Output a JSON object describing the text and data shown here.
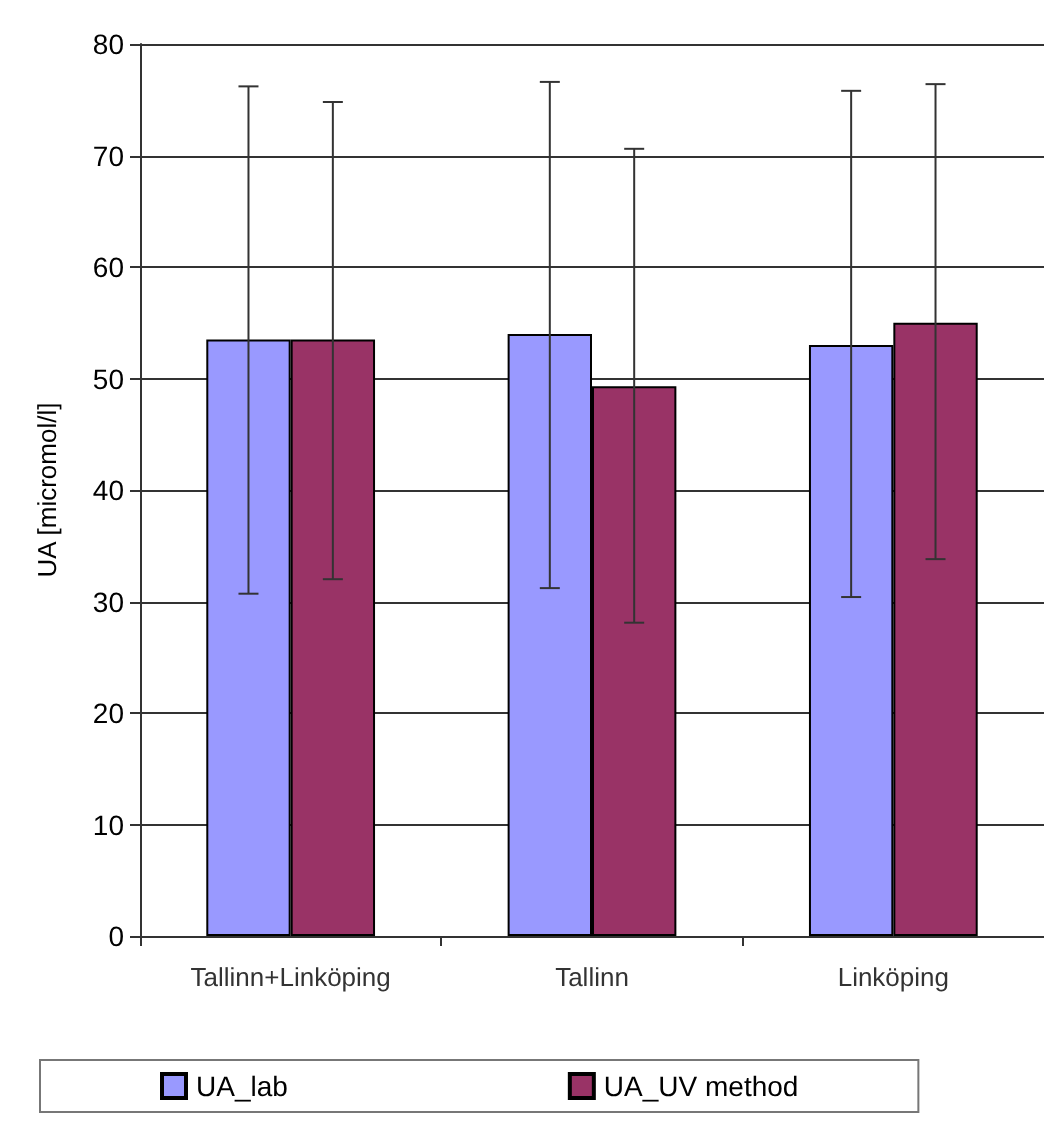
{
  "chart_data": {
    "type": "bar",
    "ylabel": "UA [micromol/l]",
    "categories": [
      "Tallinn+Linköping",
      "Tallinn",
      "Linköping"
    ],
    "series": [
      {
        "name": "UA_lab",
        "color": "#9999ff",
        "values": [
          53.5,
          54,
          53
        ],
        "errors": [
          [
            30.7,
            76.2
          ],
          [
            31.2,
            76.6
          ],
          [
            30.4,
            75.8
          ]
        ]
      },
      {
        "name": "UA_UV method",
        "color": "#993366",
        "values": [
          53.5,
          49.3,
          55
        ],
        "errors": [
          [
            32,
            74.8
          ],
          [
            28.1,
            70.6
          ],
          [
            33.8,
            76.4
          ]
        ]
      }
    ],
    "ylim": [
      0,
      80
    ],
    "yticks": [
      0,
      10,
      20,
      30,
      40,
      50,
      60,
      70,
      80
    ],
    "grid": "y",
    "legend": "bottom"
  }
}
